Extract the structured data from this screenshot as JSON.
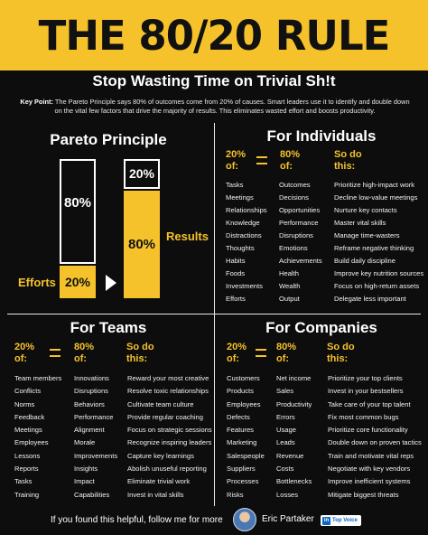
{
  "header": {
    "title": "THE 80/20 RULE"
  },
  "subtitle": "Stop Wasting Time on Trivial Sh!t",
  "key_point": {
    "label": "Key Point:",
    "text": " The Pareto Principle says 80% of outcomes come from 20% of causes. Smart leaders use it to identify and double down on the vital few factors that drive the majority of results. This eliminates wasted effort and boosts productivity."
  },
  "pareto": {
    "title": "Pareto Principle",
    "left_top_value": "80%",
    "left_bottom_value": "20%",
    "right_top_value": "20%",
    "right_bottom_value": "80%",
    "efforts_label": "Efforts",
    "results_label": "Results"
  },
  "individuals": {
    "title": "For Individuals",
    "col1_head": "20%\nof:",
    "col2_head": "80%\nof:",
    "col3_head": "So do\nthis:",
    "col1": [
      "Tasks",
      "Meetings",
      "Relationships",
      "Knowledge",
      "Distractions",
      "Thoughts",
      "Habits",
      "Foods",
      "Investments",
      "Efforts"
    ],
    "col2": [
      "Outcomes",
      "Decisions",
      "Opportunities",
      "Performance",
      "Disruptions",
      "Emotions",
      "Achievements",
      "Health",
      "Wealth",
      "Output"
    ],
    "col3": [
      "Prioritize high-impact work",
      "Decline low-value meetings",
      "Nurture key contacts",
      "Master vital skills",
      "Manage time-wasters",
      "Reframe negative thinking",
      "Build daily discipline",
      "Improve key nutrition sources",
      "Focus on high-return assets",
      "Delegate less important"
    ]
  },
  "teams": {
    "title": "For Teams",
    "col1_head": "20%\nof:",
    "col2_head": "80%\nof:",
    "col3_head": "So do\nthis:",
    "col1": [
      "Team members",
      "Conflicts",
      "Norms",
      "Feedback",
      "Meetings",
      "Employees",
      "Lessons",
      "Reports",
      "Tasks",
      "Training"
    ],
    "col2": [
      "Innovations",
      "Disruptions",
      "Behaviors",
      "Performance",
      "Alignment",
      "Morale",
      "Improvements",
      "Insights",
      "Impact",
      "Capabilities"
    ],
    "col3": [
      "Reward your most creative",
      "Resolve toxic relationships",
      "Cultivate team culture",
      "Provide regular coaching",
      "Focus on strategic sessions",
      "Recognize inspiring leaders",
      "Capture key learnings",
      "Abolish unuseful reporting",
      "Eliminate trivial work",
      "Invest in vital skills"
    ]
  },
  "companies": {
    "title": "For Companies",
    "col1_head": "20%\nof:",
    "col2_head": "80%\nof:",
    "col3_head": "So do\nthis:",
    "col1": [
      "Customers",
      "Products",
      "Employees",
      "Defects",
      "Features",
      "Marketing",
      "Salespeople",
      "Suppliers",
      "Processes",
      "Risks"
    ],
    "col2": [
      "Net income",
      "Sales",
      "Productivity",
      "Errors",
      "Usage",
      "Leads",
      "Revenue",
      "Costs",
      "Bottlenecks",
      "Losses"
    ],
    "col3": [
      "Prioritize your top clients",
      "Invest in your bestsellers",
      "Take care of your top talent",
      "Fix most common bugs",
      "Prioritize core functionality",
      "Double down on proven tactics",
      "Train and motivate vital reps",
      "Negotiate with key vendors",
      "Improve inefficient systems",
      "Mitigate biggest threats"
    ]
  },
  "footer": {
    "text": "If you found this helpful, follow me for more",
    "author": "Eric Partaker",
    "badge": "Top Voice",
    "badge_icon": "in"
  },
  "colors": {
    "accent": "#f6c22b",
    "background": "#0d0d0d"
  }
}
